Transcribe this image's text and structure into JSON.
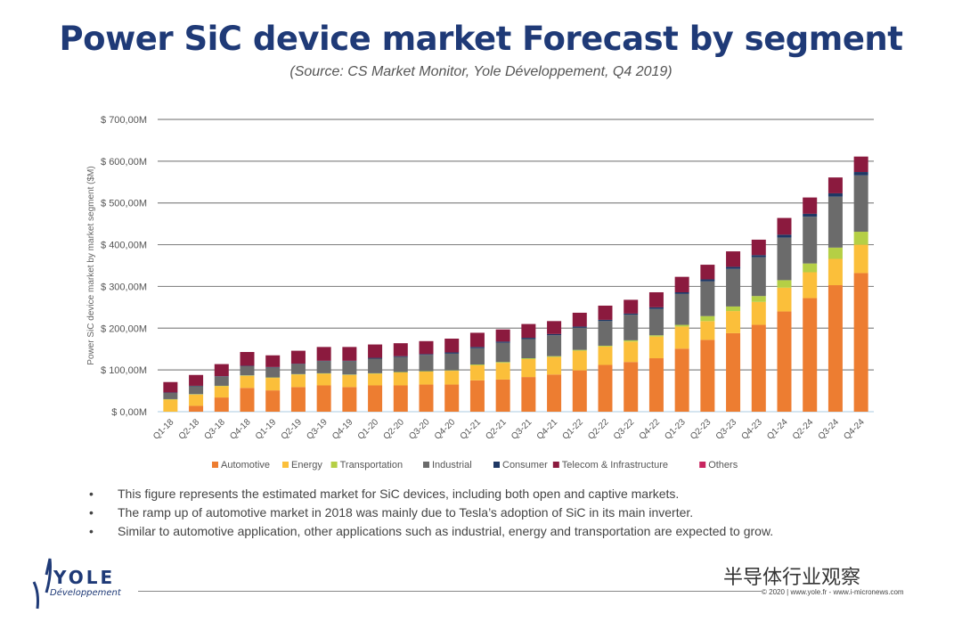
{
  "title": "Power SiC device market Forecast by segment",
  "subtitle": "(Source: CS Market Monitor, Yole Développement, Q4 2019)",
  "chart_data": {
    "type": "bar",
    "stacked": true,
    "ylabel": "Power SiC device market by market segment ($M)",
    "xlabel": "",
    "ylim": [
      0,
      700
    ],
    "yticks": [
      "$ 0,00M",
      "$ 100,00M",
      "$ 200,00M",
      "$ 300,00M",
      "$ 400,00M",
      "$ 500,00M",
      "$ 600,00M",
      "$ 700,00M"
    ],
    "grid": true,
    "legend_position": "bottom",
    "categories": [
      "Q1-18",
      "Q2-18",
      "Q3-18",
      "Q4-18",
      "Q1-19",
      "Q2-19",
      "Q3-19",
      "Q4-19",
      "Q1-20",
      "Q2-20",
      "Q3-20",
      "Q4-20",
      "Q1-21",
      "Q2-21",
      "Q3-21",
      "Q4-21",
      "Q1-22",
      "Q2-22",
      "Q3-22",
      "Q4-22",
      "Q1-23",
      "Q2-23",
      "Q3-23",
      "Q4-23",
      "Q1-24",
      "Q2-24",
      "Q3-24",
      "Q4-24"
    ],
    "series": [
      {
        "name": "Automotive",
        "color": "#ed7d31",
        "values": [
          0,
          14,
          34,
          57,
          51,
          59,
          63,
          59,
          63,
          63,
          65,
          65,
          75,
          77,
          83,
          89,
          99,
          112,
          119,
          128,
          151,
          172,
          188,
          208,
          240,
          272,
          303,
          332
        ]
      },
      {
        "name": "Energy",
        "color": "#fbbf3a",
        "values": [
          29,
          27,
          27,
          29,
          30,
          30,
          28,
          29,
          28,
          31,
          31,
          33,
          36,
          40,
          43,
          42,
          47,
          44,
          49,
          52,
          53,
          45,
          53,
          55,
          57,
          62,
          63,
          68
        ]
      },
      {
        "name": "Transportation",
        "color": "#b5cf45",
        "values": [
          1,
          1,
          1,
          1,
          1,
          1,
          1,
          1,
          1,
          1,
          1,
          1,
          2,
          2,
          2,
          2,
          2,
          2,
          3,
          3,
          4,
          12,
          11,
          14,
          18,
          21,
          27,
          31
        ]
      },
      {
        "name": "Industrial",
        "color": "#6b6b6b",
        "values": [
          15,
          19,
          22,
          22,
          24,
          24,
          29,
          32,
          35,
          36,
          39,
          40,
          39,
          46,
          46,
          50,
          53,
          59,
          61,
          63,
          74,
          83,
          90,
          93,
          102,
          112,
          122,
          135
        ]
      },
      {
        "name": "Consumer",
        "color": "#1f3864",
        "values": [
          1,
          1,
          1,
          1,
          1,
          1,
          1,
          1,
          2,
          2,
          2,
          3,
          3,
          3,
          3,
          3,
          3,
          3,
          3,
          4,
          4,
          5,
          5,
          5,
          7,
          7,
          8,
          8
        ]
      },
      {
        "name": "Telecom & Infrastructure",
        "color": "#8b1a3e",
        "values": [
          25,
          26,
          29,
          33,
          28,
          31,
          33,
          33,
          32,
          31,
          31,
          33,
          34,
          29,
          33,
          31,
          33,
          34,
          33,
          36,
          37,
          35,
          37,
          37,
          40,
          39,
          38,
          37
        ]
      },
      {
        "name": "Others",
        "color": "#c8245f",
        "values": [
          0,
          0,
          0,
          0,
          0,
          0,
          0,
          0,
          0,
          0,
          0,
          0,
          0,
          0,
          0,
          0,
          0,
          0,
          0,
          0,
          0,
          0,
          0,
          0,
          0,
          0,
          0,
          0
        ]
      }
    ]
  },
  "bullets": [
    "This figure represents the estimated market for SiC devices, including both open and captive markets.",
    "The ramp up of automotive market in 2018 was mainly due to Tesla’s adoption of SiC in its main inverter.",
    "Similar to automotive application, other applications such as industrial, energy and transportation are expected to grow."
  ],
  "logo": {
    "name": "YOLE",
    "sub": "Développement"
  },
  "watermark": "半导体行业观察",
  "copyright": "© 2020 | www.yole.fr - www.i-micronews.com"
}
